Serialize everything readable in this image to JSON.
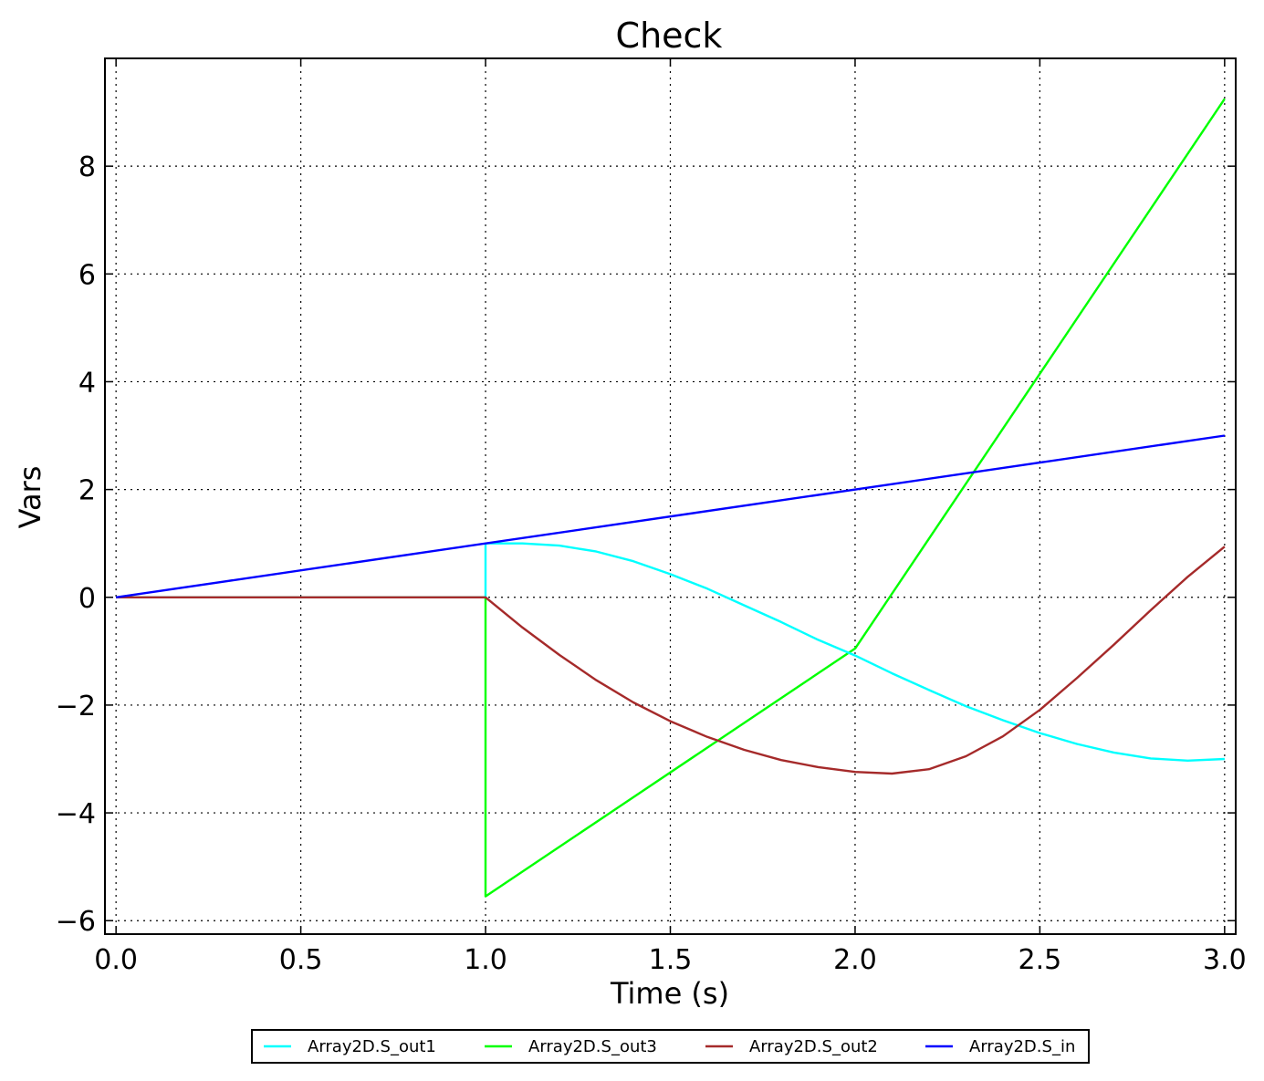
{
  "chart_data": {
    "type": "line",
    "title": "Check",
    "xlabel": "Time (s)",
    "ylabel": "Vars",
    "xlim": [
      -0.03,
      3.03
    ],
    "ylim": [
      -6.25,
      10.0
    ],
    "xticks": [
      0.0,
      0.5,
      1.0,
      1.5,
      2.0,
      2.5,
      3.0
    ],
    "xtick_labels": [
      "0.0",
      "0.5",
      "1.0",
      "1.5",
      "2.0",
      "2.5",
      "3.0"
    ],
    "yticks": [
      -6,
      -4,
      -2,
      0,
      2,
      4,
      6,
      8
    ],
    "ytick_labels": [
      "−6",
      "−4",
      "−2",
      "0",
      "2",
      "4",
      "6",
      "8"
    ],
    "grid": true,
    "legend_position": "below-center",
    "series": [
      {
        "name": "Array2D.S_out1",
        "color": "#00ffff",
        "x": [
          0,
          1.0,
          1.0,
          1.1,
          1.2,
          1.3,
          1.4,
          1.5,
          1.6,
          1.7,
          1.8,
          1.9,
          2.0,
          2.1,
          2.2,
          2.3,
          2.4,
          2.5,
          2.6,
          2.7,
          2.8,
          2.9,
          3.0
        ],
        "y": [
          0,
          0,
          1.0,
          1.0,
          0.96,
          0.85,
          0.67,
          0.43,
          0.16,
          -0.15,
          -0.46,
          -0.79,
          -1.08,
          -1.41,
          -1.72,
          -2.02,
          -2.28,
          -2.52,
          -2.72,
          -2.88,
          -2.99,
          -3.03,
          -3.0
        ]
      },
      {
        "name": "Array2D.S_out3",
        "color": "#00ff00",
        "x": [
          0,
          1.0,
          1.0,
          2.0,
          3.0
        ],
        "y": [
          0,
          0,
          -5.55,
          -0.95,
          9.25
        ]
      },
      {
        "name": "Array2D.S_out2",
        "color": "#a52a2a",
        "x": [
          0,
          1.0,
          1.1,
          1.2,
          1.3,
          1.4,
          1.5,
          1.6,
          1.7,
          1.8,
          1.9,
          2.0,
          2.1,
          2.2,
          2.3,
          2.4,
          2.5,
          2.6,
          2.7,
          2.8,
          2.9,
          3.0
        ],
        "y": [
          0,
          0,
          -0.56,
          -1.07,
          -1.54,
          -1.95,
          -2.3,
          -2.59,
          -2.83,
          -3.02,
          -3.15,
          -3.24,
          -3.27,
          -3.19,
          -2.95,
          -2.58,
          -2.09,
          -1.5,
          -0.88,
          -0.24,
          0.38,
          0.94
        ]
      },
      {
        "name": "Array2D.S_in",
        "color": "#0000ff",
        "x": [
          0,
          3.0
        ],
        "y": [
          0,
          3.0
        ]
      }
    ]
  }
}
